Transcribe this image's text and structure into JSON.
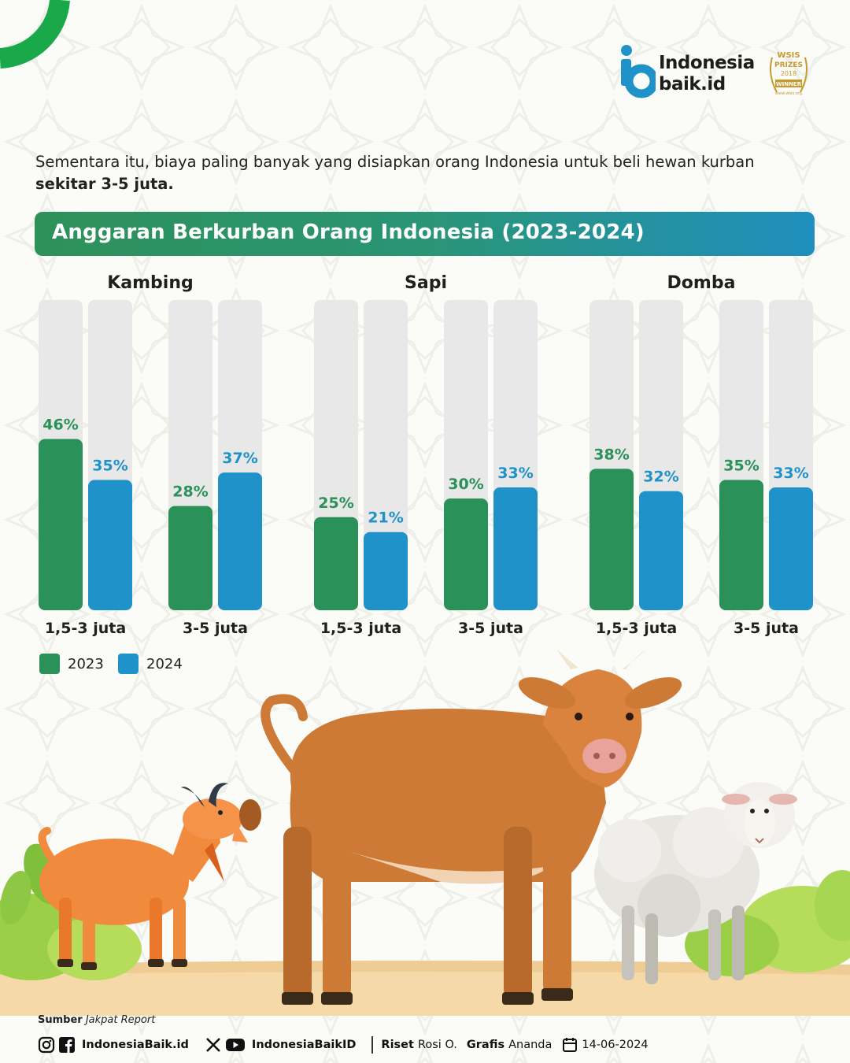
{
  "brand": {
    "logo_line1": "Indonesia",
    "logo_line2": "baik.id",
    "badge": {
      "line1": "WSIS",
      "line2": "PRIZES",
      "line3": "2018",
      "line4": "WINNER",
      "line5": "www.wsis.org"
    }
  },
  "intro": {
    "text": "Sementara itu, biaya paling banyak yang disiapkan orang Indonesia untuk beli hewan kurban",
    "bold": "sekitar 3-5 juta."
  },
  "colors": {
    "series_2023": "#2a9159",
    "series_2024": "#1f93c9",
    "track": "#e8e8e8"
  },
  "chart_data": {
    "type": "bar",
    "title": "Anggaran Berkurban Orang Indonesia (2023-2024)",
    "ylim": [
      0,
      100
    ],
    "unit": "%",
    "legend_position": "bottom-left",
    "grid": false,
    "series_names": [
      "2023",
      "2024"
    ],
    "groups": [
      {
        "name": "Kambing",
        "categories": [
          {
            "label": "1,5-3 juta",
            "values": [
              46,
              35
            ]
          },
          {
            "label": "3-5 juta",
            "values": [
              28,
              37
            ]
          }
        ]
      },
      {
        "name": "Sapi",
        "categories": [
          {
            "label": "1,5-3 juta",
            "values": [
              25,
              21
            ]
          },
          {
            "label": "3-5 juta",
            "values": [
              30,
              33
            ]
          }
        ]
      },
      {
        "name": "Domba",
        "categories": [
          {
            "label": "1,5-3 juta",
            "values": [
              38,
              32
            ]
          },
          {
            "label": "3-5 juta",
            "values": [
              35,
              33
            ]
          }
        ]
      }
    ]
  },
  "legend": [
    {
      "label": "2023",
      "color": "#2a9159"
    },
    {
      "label": "2024",
      "color": "#1f93c9"
    }
  ],
  "footer": {
    "source_label": "Sumber",
    "source_value": "Jakpat Report",
    "handle_1": "IndonesiaBaik.id",
    "handle_2": "IndonesiaBaikID",
    "riset_label": "Riset",
    "riset_value": "Rosi O.",
    "grafis_label": "Grafis",
    "grafis_value": "Ananda",
    "date": "14-06-2024",
    "icons": [
      "instagram-icon",
      "facebook-icon",
      "x-icon",
      "youtube-icon",
      "calendar-icon"
    ]
  }
}
